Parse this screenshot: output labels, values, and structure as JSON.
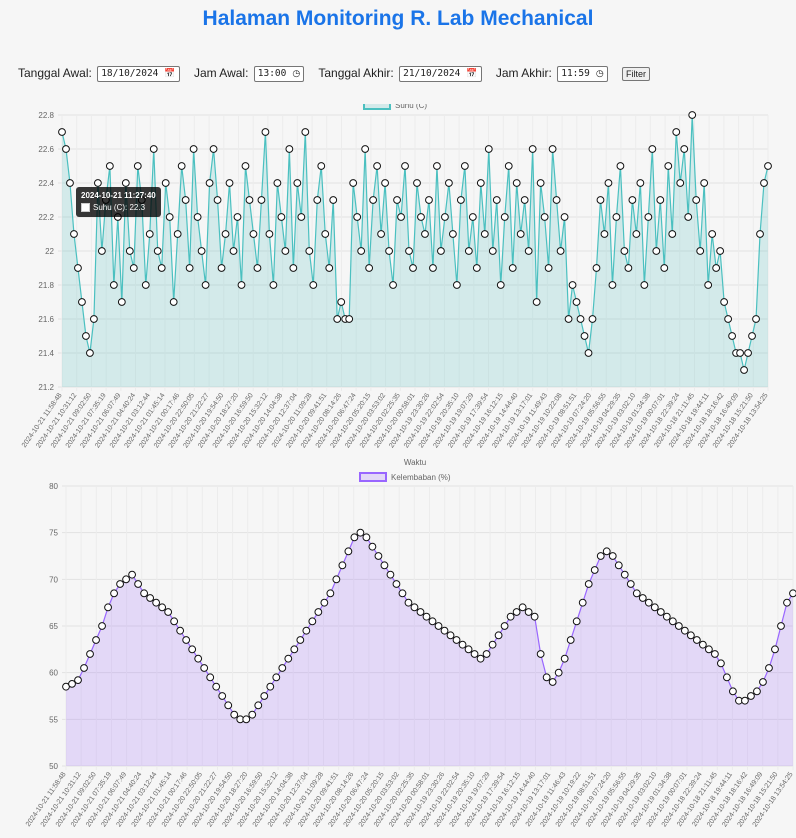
{
  "page": {
    "title": "Halaman Monitoring R. Lab Mechanical"
  },
  "filter": {
    "start_date_label": "Tanggal Awal:",
    "start_date": "18/10/2024",
    "start_time_label": "Jam Awal:",
    "start_time": "13:00",
    "end_date_label": "Tanggal Akhir:",
    "end_date": "21/10/2024",
    "end_time_label": "Jam Akhir:",
    "end_time": "11:59",
    "button_label": "Filter"
  },
  "icons": {
    "calendar": "calendar-icon",
    "clock": "clock-icon"
  },
  "tooltip": {
    "title": "2024-10-21 11:27:40",
    "line": "Suhu (C): 22.3"
  },
  "chart_data": [
    {
      "type": "area",
      "series": [
        {
          "name": "Suhu (C)",
          "color": "#4bc0c0",
          "fill": "rgba(75,192,192,0.2)"
        }
      ],
      "ylim": [
        21.2,
        22.8
      ],
      "yticks": [
        21.2,
        21.4,
        21.6,
        21.8,
        22.0,
        22.2,
        22.4,
        22.6,
        22.8
      ],
      "xlabel": "Waktu",
      "ylabel": "",
      "grid": true,
      "legend": "top-center",
      "xtick_labels": [
        "2024-10-21 11:58:48",
        "2024-10-21 10:31:12",
        "2024-10-21 09:02:50",
        "2024-10-21 07:35:19",
        "2024-10-21 06:07:49",
        "2024-10-21 04:40:24",
        "2024-10-21 03:12:44",
        "2024-10-21 01:45:14",
        "2024-10-21 00:17:46",
        "2024-10-20 22:50:05",
        "2024-10-20 21:22:27",
        "2024-10-20 19:54:50",
        "2024-10-20 18:27:20",
        "2024-10-20 16:59:50",
        "2024-10-20 15:32:12",
        "2024-10-20 14:04:38",
        "2024-10-20 12:37:04",
        "2024-10-20 11:09:28",
        "2024-10-20 09:41:51",
        "2024-10-20 08:14:26",
        "2024-10-20 06:47:24",
        "2024-10-20 05:20:15",
        "2024-10-20 03:53:02",
        "2024-10-20 02:25:35",
        "2024-10-20 00:58:01",
        "2024-10-19 23:30:26",
        "2024-10-19 22:02:54",
        "2024-10-19 20:35:10",
        "2024-10-19 19:07:29",
        "2024-10-19 17:39:54",
        "2024-10-19 16:12:15",
        "2024-10-19 14:44:40",
        "2024-10-19 13:17:01",
        "2024-10-19 11:49:43",
        "2024-10-19 10:22:08",
        "2024-10-19 08:51:51",
        "2024-10-19 07:24:20",
        "2024-10-19 05:56:55",
        "2024-10-19 04:29:35",
        "2024-10-19 03:02:10",
        "2024-10-19 01:34:38",
        "2024-10-19 00:07:01",
        "2024-10-18 22:39:24",
        "2024-10-18 21:11:45",
        "2024-10-18 19:44:11",
        "2024-10-18 18:16:42",
        "2024-10-18 16:49:09",
        "2024-10-18 15:21:50",
        "2024-10-18 13:54:25"
      ],
      "values": [
        22.7,
        22.6,
        22.4,
        22.1,
        21.9,
        21.7,
        21.5,
        21.4,
        21.6,
        22.4,
        22.0,
        22.3,
        22.5,
        21.8,
        22.2,
        21.7,
        22.4,
        22.0,
        21.9,
        22.5,
        22.3,
        21.8,
        22.1,
        22.6,
        22.0,
        21.9,
        22.4,
        22.2,
        21.7,
        22.1,
        22.5,
        22.3,
        21.9,
        22.6,
        22.2,
        22.0,
        21.8,
        22.4,
        22.6,
        22.3,
        21.9,
        22.1,
        22.4,
        22.0,
        22.2,
        21.8,
        22.5,
        22.3,
        22.1,
        21.9,
        22.3,
        22.7,
        22.1,
        21.8,
        22.4,
        22.2,
        22.0,
        22.6,
        21.9,
        22.4,
        22.2,
        22.7,
        22.0,
        21.8,
        22.3,
        22.5,
        22.1,
        21.9,
        22.3,
        21.6,
        21.7,
        21.6,
        21.6,
        22.4,
        22.2,
        22.0,
        22.6,
        21.9,
        22.3,
        22.5,
        22.1,
        22.4,
        22.0,
        21.8,
        22.3,
        22.2,
        22.5,
        22.0,
        21.9,
        22.4,
        22.2,
        22.1,
        22.3,
        21.9,
        22.5,
        22.0,
        22.2,
        22.4,
        22.1,
        21.8,
        22.3,
        22.5,
        22.0,
        22.2,
        21.9,
        22.4,
        22.1,
        22.6,
        22.0,
        22.3,
        21.8,
        22.2,
        22.5,
        21.9,
        22.4,
        22.1,
        22.3,
        22.0,
        22.6,
        21.7,
        22.4,
        22.2,
        21.9,
        22.6,
        22.3,
        22.0,
        22.2,
        21.6,
        21.8,
        21.7,
        21.6,
        21.5,
        21.4,
        21.6,
        21.9,
        22.3,
        22.1,
        22.4,
        21.8,
        22.2,
        22.5,
        22.0,
        21.9,
        22.3,
        22.1,
        22.4,
        21.8,
        22.2,
        22.6,
        22.0,
        22.3,
        21.9,
        22.5,
        22.1,
        22.7,
        22.4,
        22.6,
        22.2,
        22.8,
        22.3,
        22.0,
        22.4,
        21.8,
        22.1,
        21.9,
        22.0,
        21.7,
        21.6,
        21.5,
        21.4,
        21.4,
        21.3,
        21.4,
        21.5,
        21.6,
        22.1,
        22.4,
        22.5
      ]
    },
    {
      "type": "area",
      "series": [
        {
          "name": "Kelembaban (%)",
          "color": "#9966ff",
          "fill": "rgba(153,102,255,0.2)"
        }
      ],
      "ylim": [
        50,
        80
      ],
      "yticks": [
        50,
        55,
        60,
        65,
        70,
        75,
        80
      ],
      "xlabel": "",
      "ylabel": "",
      "grid": true,
      "legend": "top-center",
      "xtick_labels": [
        "2024-10-21 11:58:48",
        "2024-10-21 10:31:12",
        "2024-10-21 09:02:50",
        "2024-10-21 07:35:19",
        "2024-10-21 06:07:49",
        "2024-10-21 04:40:24",
        "2024-10-21 03:12:44",
        "2024-10-21 01:45:14",
        "2024-10-21 00:17:46",
        "2024-10-20 22:50:05",
        "2024-10-20 21:22:27",
        "2024-10-20 19:54:50",
        "2024-10-20 18:27:20",
        "2024-10-20 16:59:50",
        "2024-10-20 15:32:12",
        "2024-10-20 14:04:38",
        "2024-10-20 12:37:04",
        "2024-10-20 11:09:28",
        "2024-10-20 09:41:51",
        "2024-10-20 08:14:26",
        "2024-10-20 06:47:24",
        "2024-10-20 05:20:15",
        "2024-10-20 03:53:02",
        "2024-10-20 02:25:35",
        "2024-10-20 00:58:01",
        "2024-10-19 23:30:26",
        "2024-10-19 22:02:54",
        "2024-10-19 20:35:10",
        "2024-10-19 19:07:29",
        "2024-10-19 17:39:54",
        "2024-10-19 16:12:15",
        "2024-10-19 14:44:40",
        "2024-10-19 13:17:01",
        "2024-10-19 11:46:43",
        "2024-10-19 10:19:22",
        "2024-10-19 08:51:51",
        "2024-10-19 07:24:20",
        "2024-10-19 05:56:55",
        "2024-10-19 04:29:35",
        "2024-10-19 03:02:10",
        "2024-10-19 01:34:38",
        "2024-10-19 00:07:01",
        "2024-10-18 22:39:24",
        "2024-10-18 21:11:45",
        "2024-10-18 19:44:11",
        "2024-10-18 18:16:42",
        "2024-10-18 16:49:09",
        "2024-10-18 15:21:50",
        "2024-10-18 13:54:25"
      ],
      "values": [
        58.5,
        58.8,
        59.2,
        60.5,
        62.0,
        63.5,
        65.0,
        67.0,
        68.5,
        69.5,
        70.0,
        70.5,
        69.5,
        68.5,
        68.0,
        67.5,
        67.0,
        66.5,
        65.5,
        64.5,
        63.5,
        62.5,
        61.5,
        60.5,
        59.5,
        58.5,
        57.5,
        56.5,
        55.5,
        55.0,
        55.0,
        55.5,
        56.5,
        57.5,
        58.5,
        59.5,
        60.5,
        61.5,
        62.5,
        63.5,
        64.5,
        65.5,
        66.5,
        67.5,
        68.5,
        70.0,
        71.5,
        73.0,
        74.5,
        75.0,
        74.5,
        73.5,
        72.5,
        71.5,
        70.5,
        69.5,
        68.5,
        67.5,
        67.0,
        66.5,
        66.0,
        65.5,
        65.0,
        64.5,
        64.0,
        63.5,
        63.0,
        62.5,
        62.0,
        61.5,
        62.0,
        63.0,
        64.0,
        65.0,
        66.0,
        66.5,
        67.0,
        66.5,
        66.0,
        62.0,
        59.5,
        59.0,
        60.0,
        61.5,
        63.5,
        65.5,
        67.5,
        69.5,
        71.0,
        72.5,
        73.0,
        72.5,
        71.5,
        70.5,
        69.5,
        68.5,
        68.0,
        67.5,
        67.0,
        66.5,
        66.0,
        65.5,
        65.0,
        64.5,
        64.0,
        63.5,
        63.0,
        62.5,
        62.0,
        61.0,
        59.5,
        58.0,
        57.0,
        57.0,
        57.5,
        58.0,
        59.0,
        60.5,
        62.5,
        65.0,
        67.5,
        68.5
      ]
    }
  ]
}
